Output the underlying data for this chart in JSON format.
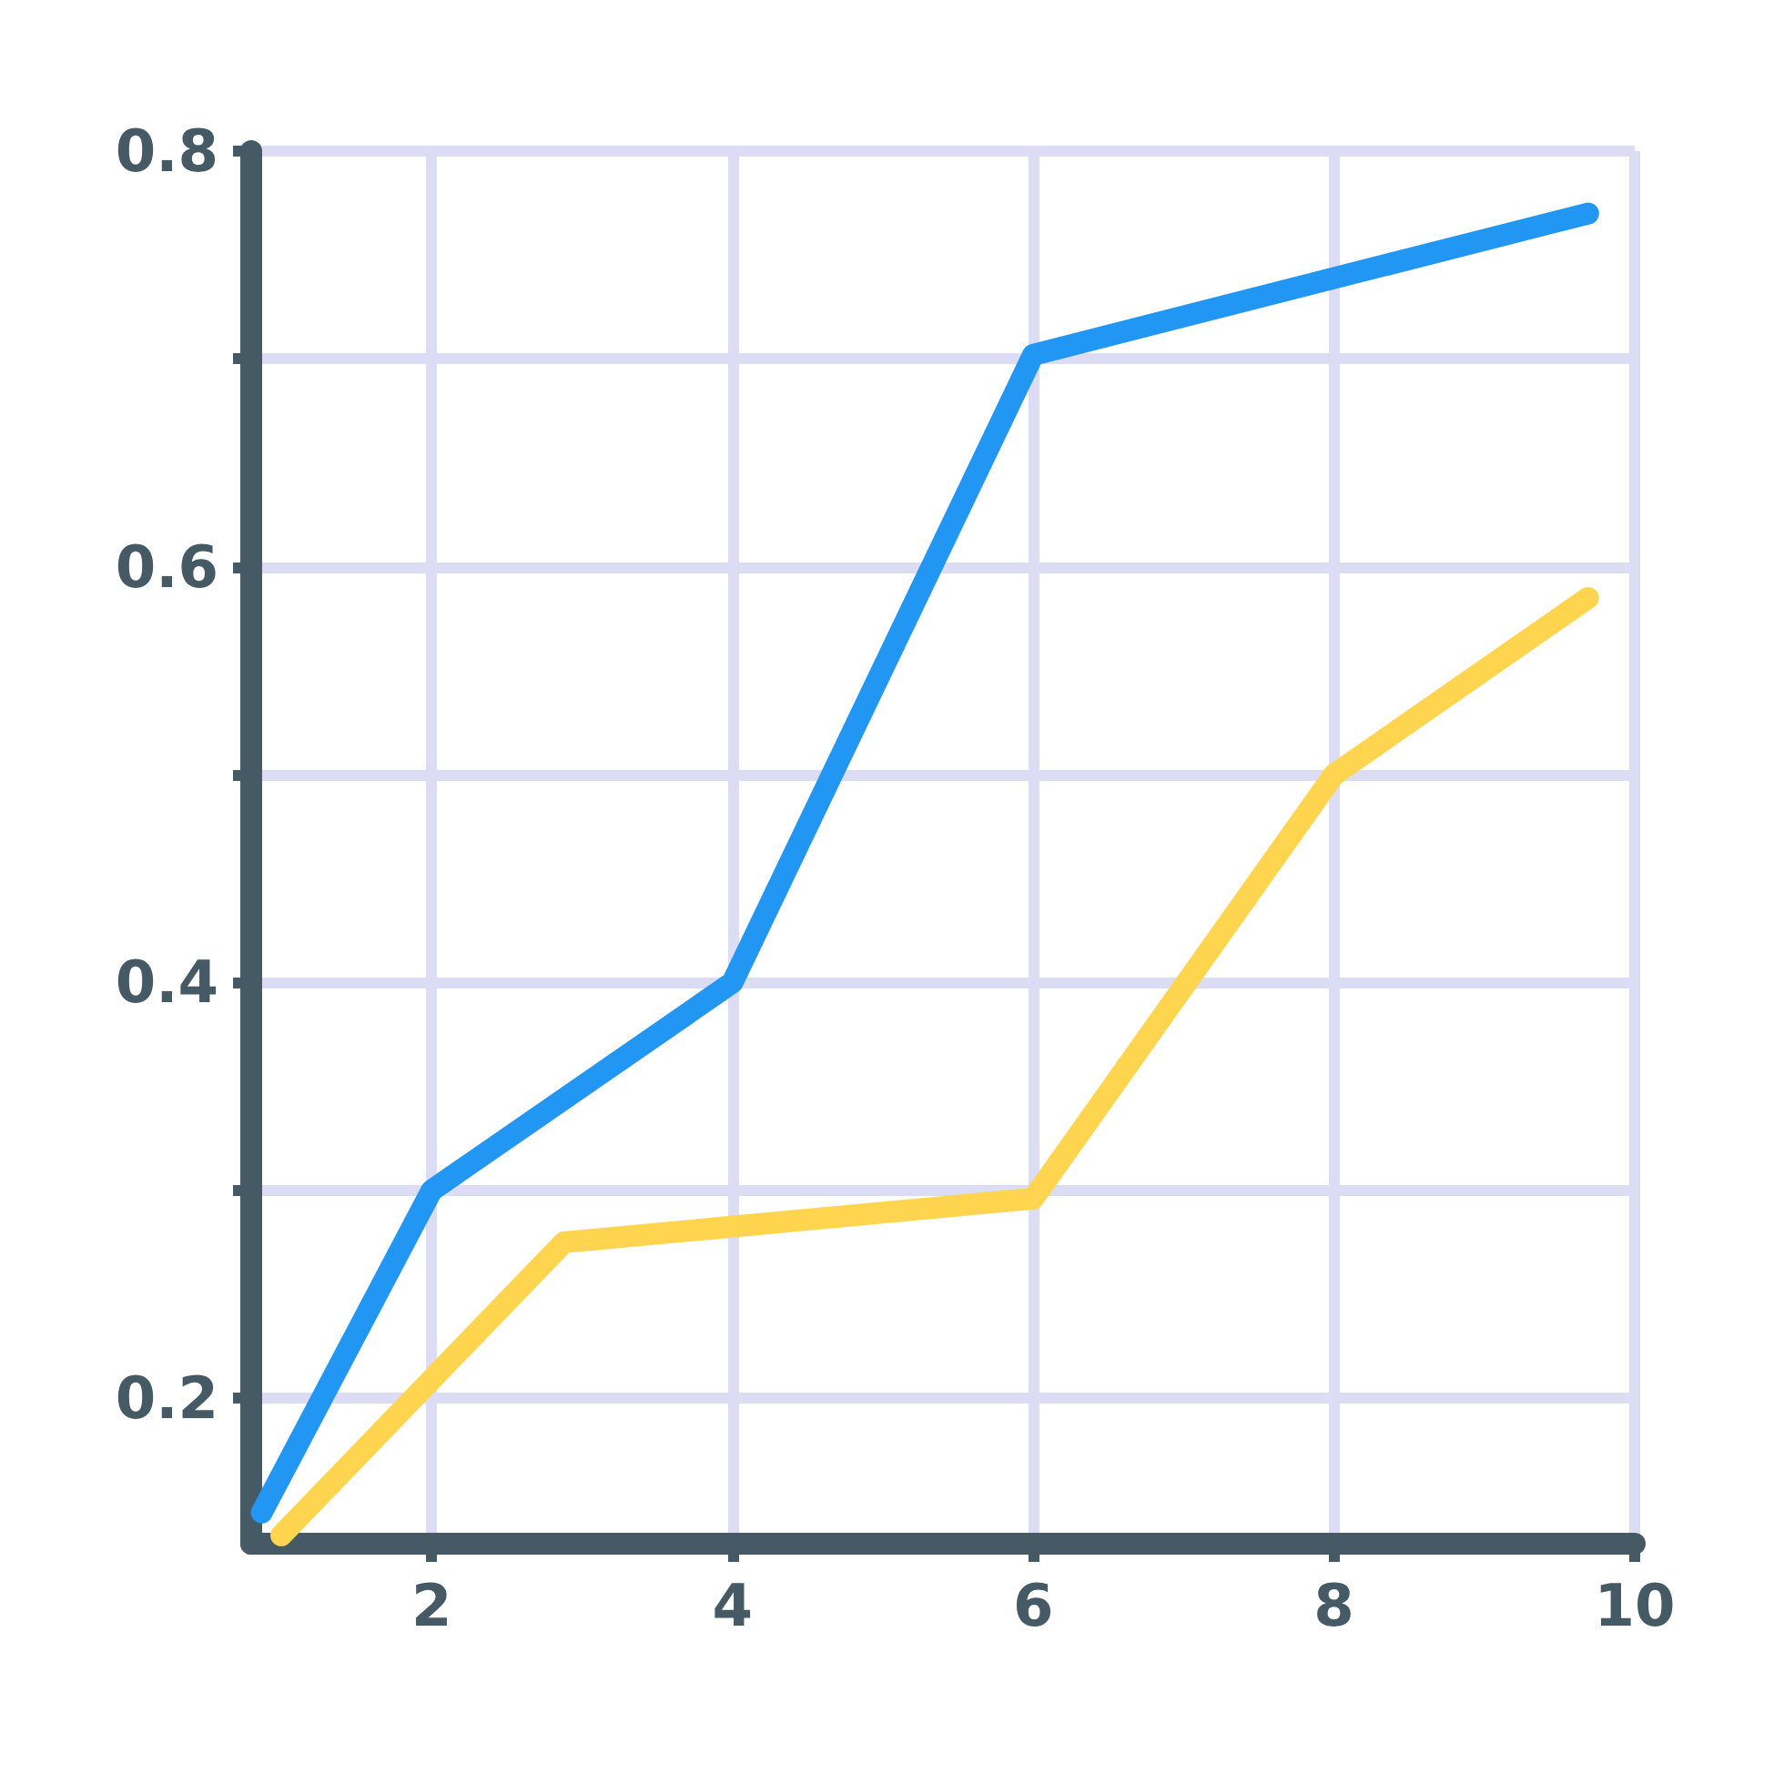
{
  "chart_data": {
    "type": "line",
    "series": [
      {
        "color": "#2196f3",
        "x": [
          0.87,
          2,
          4,
          6,
          9.69
        ],
        "values": [
          0.145,
          0.3,
          0.4,
          0.702,
          0.77
        ]
      },
      {
        "color": "#ffd54f",
        "x": [
          1.0,
          2.88,
          6,
          8,
          9.69
        ],
        "values": [
          0.134,
          0.275,
          0.296,
          0.5,
          0.585
        ]
      }
    ],
    "xlim": [
      0.8,
      10
    ],
    "xticks": [
      2,
      4,
      6,
      8,
      10
    ],
    "ylim": [
      0.13,
      0.8
    ],
    "yticks": [
      0.2,
      {
        "value": 0.3,
        "label": null
      },
      0.4,
      {
        "value": 0.5,
        "label": null
      },
      0.6,
      {
        "value": 0.7,
        "label": null
      },
      0.8
    ],
    "grid": true,
    "line_style": "solid"
  }
}
